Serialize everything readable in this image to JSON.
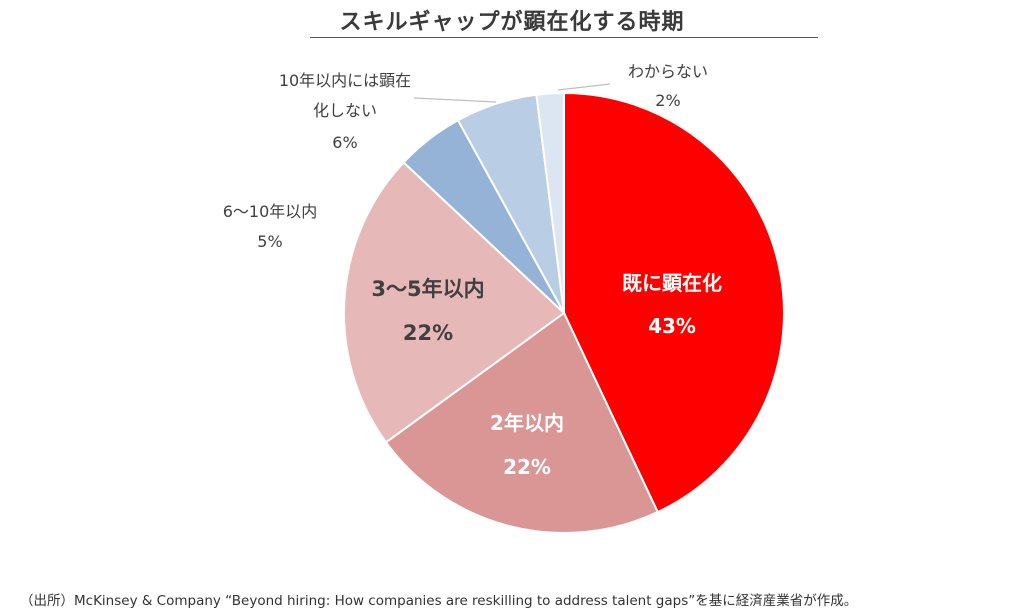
{
  "chart_data": {
    "type": "pie",
    "title": "スキルギャップが顕在化する時期",
    "start_angle_deg": 0,
    "direction": "clockwise",
    "slices": [
      {
        "label": "既に顕在化",
        "value": 43,
        "value_label": "43%",
        "color": "#ff0000",
        "label_style": "inside",
        "label_color": "#ffffff"
      },
      {
        "label": "2年以内",
        "value": 22,
        "value_label": "22%",
        "color": "#d99694",
        "label_style": "inside",
        "label_color": "#ffffff"
      },
      {
        "label": "3～5年以内",
        "value": 22,
        "value_label": "22%",
        "color": "#e6b9b8",
        "label_style": "inside",
        "label_color": "#404040"
      },
      {
        "label": "6～10年以内",
        "value": 5,
        "value_label": "5%",
        "color": "#95b3d7",
        "label_style": "outside",
        "label_color": "#404040"
      },
      {
        "label": "10年以内には顕在化しない",
        "label_lines": [
          "10年以内には顕在",
          "化しない"
        ],
        "value": 6,
        "value_label": "6%",
        "color": "#b9cde5",
        "label_style": "outside",
        "label_color": "#404040"
      },
      {
        "label": "わからない",
        "value": 2,
        "value_label": "2%",
        "color": "#dce6f2",
        "label_style": "outside",
        "label_color": "#404040"
      }
    ]
  },
  "source": "（出所）McKinsey & Company “Beyond hiring: How companies are reskilling to address talent gaps”を基に経済産業省が作成。"
}
